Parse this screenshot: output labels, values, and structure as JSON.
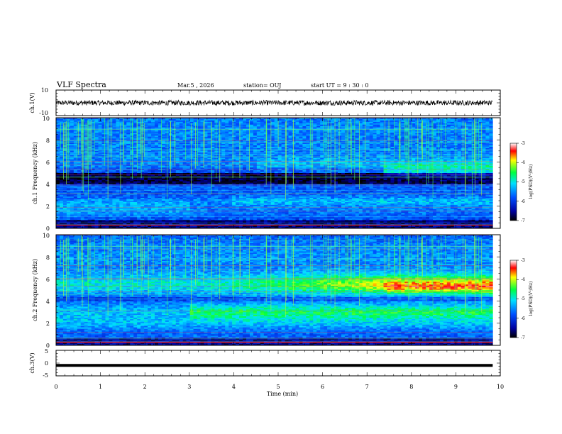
{
  "header": {
    "title": "VLF Spectra",
    "date": "Mar.5 , 2026",
    "station": "station= OUJ",
    "start": "start UT = 9 : 30 : 0"
  },
  "chart_data": [
    {
      "type": "line",
      "panel": "ch1-waveform",
      "ylabel": "ch.1(V)",
      "ylim": [
        -10,
        10
      ],
      "yticks": [
        "10",
        "-10"
      ],
      "xlim": [
        0,
        10
      ],
      "trace_extent_min": [
        0,
        9.83
      ],
      "trace_center_v": 0,
      "trace_halfwidth_v": 2,
      "color": "#000000"
    },
    {
      "type": "heatmap",
      "panel": "ch1-spectrogram",
      "ylabel": "ch.1 Frequency (kHz)",
      "ylim": [
        0,
        10
      ],
      "yticks": [
        "0",
        "2",
        "4",
        "6",
        "8",
        "10"
      ],
      "xlim": [
        0,
        10
      ],
      "data_extent_min": [
        0,
        9.83
      ],
      "colorbar": {
        "label": "log(PSD)(V²/Hz)",
        "range": [
          -7,
          -3
        ],
        "ticks": [
          "-3",
          "-4",
          "-5",
          "-6",
          "-7"
        ]
      },
      "notes": "broadband emissions 0-10 kHz; strong band near 5.5 kHz after ~7.5 min; dark band ~4.2-5 kHz"
    },
    {
      "type": "heatmap",
      "panel": "ch2-spectrogram",
      "ylabel": "ch.2 Frequency (kHz)",
      "ylim": [
        0,
        10
      ],
      "yticks": [
        "0",
        "2",
        "4",
        "6",
        "8",
        "10"
      ],
      "xlim": [
        0,
        10
      ],
      "data_extent_min": [
        0,
        9.83
      ],
      "colorbar": {
        "label": "log(PSD)(V²/Hz)",
        "range": [
          -7,
          -3
        ],
        "ticks": [
          "-3",
          "-4",
          "-5",
          "-6",
          "-7"
        ]
      },
      "notes": "intense emission band ~5-6 kHz increasing after ~4.5 min, peak (red) after ~7.5 min; band ~2.5-3.5 kHz"
    },
    {
      "type": "line",
      "panel": "ch3-waveform",
      "ylabel": "ch.3(V)",
      "ylim": [
        -5,
        5
      ],
      "yticks": [
        "5",
        "0",
        "-5"
      ],
      "xlim": [
        0,
        10
      ],
      "trace_extent_min": [
        0,
        9.83
      ],
      "trace_center_v": -0.9,
      "color": "#000000"
    }
  ],
  "xaxis": {
    "label": "Time (min)",
    "ticks": [
      "0",
      "1",
      "2",
      "3",
      "4",
      "5",
      "6",
      "7",
      "8",
      "9",
      "10"
    ]
  }
}
